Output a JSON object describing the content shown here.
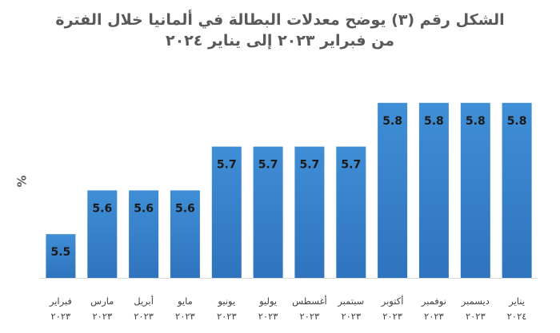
{
  "chart_data": {
    "type": "bar",
    "title": "الشكل رقم (٣) يوضح معدلات البطالة في ألمانيا خلال الفترة",
    "subtitle": "من فبراير ٢٠٢٣ إلى يناير ٢٠٢٤",
    "ylabel": "%",
    "xlabel": "",
    "ylim": [
      5.4,
      5.9
    ],
    "grid": false,
    "legend": "none",
    "bar_color": "#3a87cf",
    "categories": [
      {
        "month": "فبراير",
        "year": "٢٠٢٣"
      },
      {
        "month": "مارس",
        "year": "٢٠٢٣"
      },
      {
        "month": "أبريل",
        "year": "٢٠٢٣"
      },
      {
        "month": "مايو",
        "year": "٢٠٢٣"
      },
      {
        "month": "يونيو",
        "year": "٢٠٢٣"
      },
      {
        "month": "يوليو",
        "year": "٢٠٢٣"
      },
      {
        "month": "أغسطس",
        "year": "٢٠٢٣"
      },
      {
        "month": "سبتمبر",
        "year": "٢٠٢٣"
      },
      {
        "month": "أكتوبر",
        "year": "٢٠٢٣"
      },
      {
        "month": "نوفمبر",
        "year": "٢٠٢٣"
      },
      {
        "month": "ديسمبر",
        "year": "٢٠٢٣"
      },
      {
        "month": "يناير",
        "year": "٢٠٢٤"
      }
    ],
    "values": [
      5.5,
      5.6,
      5.6,
      5.6,
      5.7,
      5.7,
      5.7,
      5.7,
      5.8,
      5.8,
      5.8,
      5.8
    ]
  }
}
